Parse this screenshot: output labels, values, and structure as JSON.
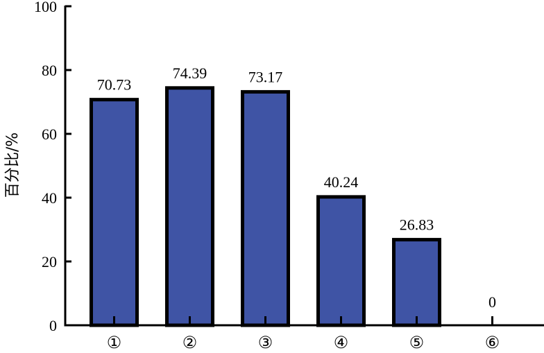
{
  "chart_data": {
    "type": "bar",
    "title": "",
    "xlabel": "",
    "ylabel": "百分比/%",
    "ylim": [
      0,
      100
    ],
    "yticks": [
      0,
      20,
      40,
      60,
      80,
      100
    ],
    "categories": [
      "①",
      "②",
      "③",
      "④",
      "⑤",
      "⑥"
    ],
    "values": [
      70.73,
      74.39,
      73.17,
      40.24,
      26.83,
      0
    ],
    "data_labels": [
      "70.73",
      "74.39",
      "73.17",
      "40.24",
      "26.83",
      "0"
    ],
    "grid": false,
    "legend": "none",
    "colors": {
      "bar_fill": "#3f54a5",
      "bar_edge": "#000000",
      "axis": "#000000"
    }
  }
}
